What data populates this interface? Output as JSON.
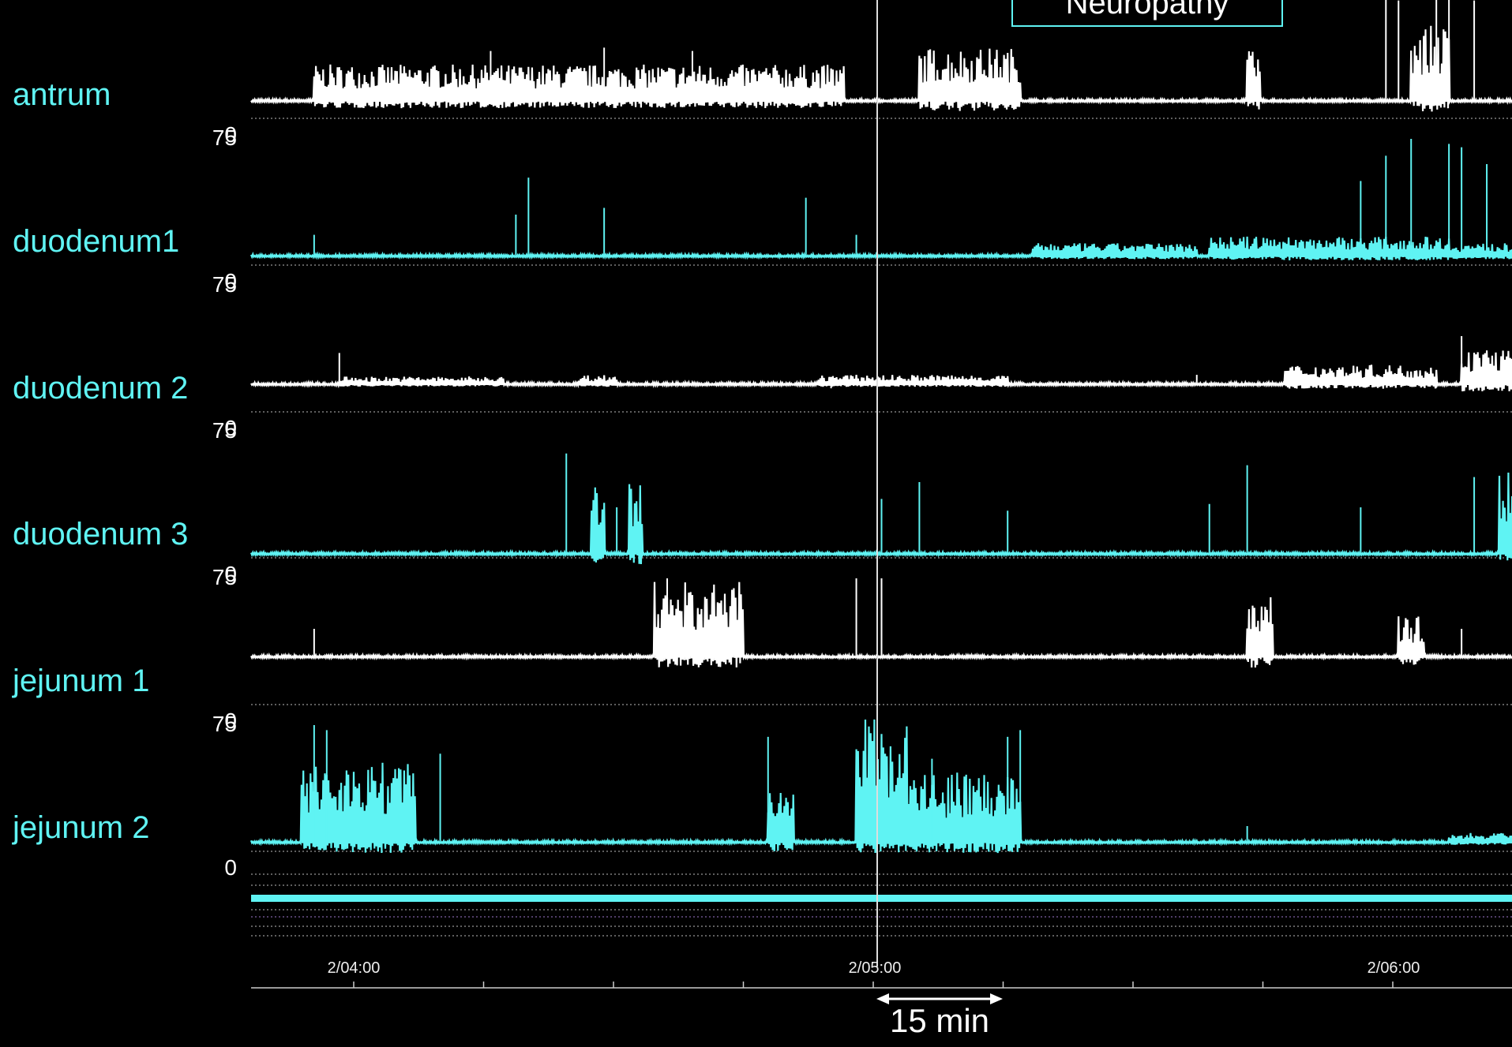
{
  "annotation": "Neuropathy",
  "colors": {
    "cyan": "#5ff3f3",
    "white": "#ffffff",
    "background": "#000000"
  },
  "chart_data": {
    "type": "line",
    "title": "",
    "xlabel": "",
    "ylabel": "",
    "ylim": [
      0,
      75
    ],
    "y_tick_labels": [
      "0",
      "75"
    ],
    "x_tick_labels": [
      "2/04:00",
      "2/05:00",
      "2/06:00"
    ],
    "scale_bar": {
      "label": "15 min"
    },
    "series": [
      {
        "name": "antrum",
        "color": "#ffffff",
        "baseline": 10,
        "bursts": [
          [
            0.05,
            0.47,
            22
          ],
          [
            0.53,
            0.61,
            32
          ],
          [
            0.79,
            0.8,
            30
          ],
          [
            0.92,
            0.95,
            45
          ]
        ],
        "spikes": [
          [
            0.19,
            40
          ],
          [
            0.28,
            42
          ],
          [
            0.35,
            40
          ],
          [
            0.9,
            75
          ],
          [
            0.91,
            70
          ],
          [
            0.94,
            75
          ],
          [
            0.95,
            75
          ],
          [
            0.97,
            70
          ]
        ]
      },
      {
        "name": "duodenum1",
        "color": "#5ff3f3",
        "baseline": 5,
        "bursts": [
          [
            0.62,
            0.75,
            8
          ],
          [
            0.76,
            0.95,
            12
          ],
          [
            0.95,
            1.0,
            8
          ]
        ],
        "spikes": [
          [
            0.05,
            18
          ],
          [
            0.21,
            30
          ],
          [
            0.22,
            52
          ],
          [
            0.28,
            34
          ],
          [
            0.44,
            40
          ],
          [
            0.48,
            18
          ],
          [
            0.88,
            50
          ],
          [
            0.9,
            65
          ],
          [
            0.92,
            75
          ],
          [
            0.95,
            72
          ],
          [
            0.96,
            70
          ],
          [
            0.98,
            60
          ]
        ]
      },
      {
        "name": "duodenum 2",
        "color": "#ffffff",
        "baseline": 16,
        "bursts": [
          [
            0.07,
            0.2,
            5
          ],
          [
            0.26,
            0.29,
            6
          ],
          [
            0.45,
            0.6,
            6
          ],
          [
            0.82,
            0.94,
            12
          ],
          [
            0.96,
            1.0,
            22
          ]
        ],
        "spikes": [
          [
            0.07,
            35
          ],
          [
            0.27,
            18
          ],
          [
            0.46,
            14
          ],
          [
            0.75,
            22
          ],
          [
            0.96,
            45
          ]
        ]
      },
      {
        "name": "duodenum 3",
        "color": "#5ff3f3",
        "baseline": 2,
        "bursts": [
          [
            0.27,
            0.28,
            42
          ],
          [
            0.3,
            0.31,
            45
          ],
          [
            0.99,
            1.0,
            52
          ]
        ],
        "spikes": [
          [
            0.25,
            62
          ],
          [
            0.29,
            30
          ],
          [
            0.5,
            35
          ],
          [
            0.53,
            45
          ],
          [
            0.6,
            28
          ],
          [
            0.76,
            32
          ],
          [
            0.79,
            55
          ],
          [
            0.88,
            30
          ],
          [
            0.97,
            48
          ]
        ]
      },
      {
        "name": "jejunum 1",
        "color": "#ffffff",
        "baseline": 28,
        "bursts": [
          [
            0.32,
            0.39,
            45
          ],
          [
            0.79,
            0.81,
            38
          ],
          [
            0.91,
            0.93,
            25
          ]
        ],
        "spikes": [
          [
            0.05,
            45
          ],
          [
            0.33,
            75
          ],
          [
            0.48,
            75
          ],
          [
            0.5,
            75
          ],
          [
            0.92,
            45
          ],
          [
            0.96,
            45
          ]
        ]
      },
      {
        "name": "jejunum 2",
        "color": "#5ff3f3",
        "baseline": 5,
        "bursts": [
          [
            0.04,
            0.13,
            48
          ],
          [
            0.41,
            0.43,
            30
          ],
          [
            0.48,
            0.52,
            75
          ],
          [
            0.52,
            0.61,
            42
          ],
          [
            0.95,
            1.0,
            6
          ]
        ],
        "spikes": [
          [
            0.05,
            75
          ],
          [
            0.06,
            72
          ],
          [
            0.15,
            58
          ],
          [
            0.41,
            68
          ],
          [
            0.54,
            55
          ],
          [
            0.6,
            68
          ],
          [
            0.61,
            72
          ],
          [
            0.79,
            15
          ]
        ]
      }
    ]
  }
}
